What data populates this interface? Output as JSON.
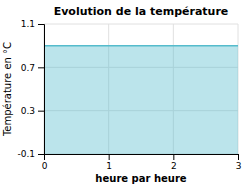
{
  "chart_data": {
    "type": "area",
    "title": "Evolution de la température",
    "x": [
      0,
      3
    ],
    "values": [
      0.9,
      0.9
    ],
    "color": "#55bbcc",
    "xlabel": "heure par heure",
    "ylabel": "Température en °C",
    "xlim": [
      0,
      3
    ],
    "ylim": [
      -0.1,
      1.1
    ],
    "xticks": [
      0,
      1,
      2,
      3
    ],
    "yticks": [
      -0.1,
      0.3,
      0.7,
      1.1
    ],
    "grid": true
  }
}
